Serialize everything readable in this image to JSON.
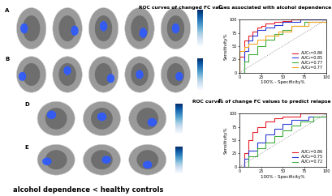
{
  "chart_data": [
    {
      "type": "line",
      "panel": "C",
      "title": "ROC curves of changed FC values associated with alcohol dependence",
      "x_label": "100% - Specificity%",
      "y_label": "Sensitivity%",
      "xlim": [
        0,
        100
      ],
      "ylim": [
        0,
        100
      ],
      "xticks": [
        0,
        25,
        50,
        75,
        100
      ],
      "yticks": [
        0,
        25,
        50,
        75,
        100
      ],
      "legend": "lower right",
      "series": [
        {
          "name": "AUC₁=0.86",
          "color": "#e8202a",
          "x": [
            0,
            0,
            5,
            5,
            10,
            15,
            20,
            25,
            30,
            40,
            50,
            60,
            75,
            100
          ],
          "values": [
            0,
            30,
            45,
            60,
            70,
            78,
            85,
            88,
            92,
            95,
            97,
            100,
            100,
            100
          ]
        },
        {
          "name": "AUC₂=0.85",
          "color": "#2a3ad8",
          "x": [
            0,
            5,
            10,
            15,
            20,
            30,
            40,
            50,
            70,
            100
          ],
          "values": [
            0,
            40,
            60,
            70,
            80,
            85,
            90,
            95,
            100,
            100
          ]
        },
        {
          "name": "AUC₃=0.77",
          "color": "#3fae3a",
          "x": [
            0,
            5,
            10,
            20,
            30,
            40,
            50,
            60,
            75,
            100
          ],
          "values": [
            0,
            20,
            35,
            50,
            62,
            72,
            80,
            88,
            95,
            100
          ]
        },
        {
          "name": "AUC₄=0.77",
          "color": "#f5a623",
          "x": [
            0,
            0,
            5,
            10,
            20,
            30,
            45,
            60,
            80,
            100
          ],
          "values": [
            0,
            40,
            48,
            55,
            62,
            70,
            78,
            88,
            95,
            100
          ]
        }
      ]
    },
    {
      "type": "line",
      "panel": "F",
      "title": "ROC curves of change FC values to predict relapse",
      "x_label": "100% - Specificity%",
      "y_label": "Sensitivity%",
      "xlim": [
        0,
        100
      ],
      "ylim": [
        0,
        100
      ],
      "xticks": [
        0,
        25,
        50,
        75,
        100
      ],
      "yticks": [
        0,
        25,
        50,
        75,
        100
      ],
      "legend": "lower right",
      "series": [
        {
          "name": "AUC₁=0.86",
          "color": "#e8202a",
          "x": [
            0,
            5,
            10,
            15,
            20,
            30,
            40,
            50,
            70,
            100
          ],
          "values": [
            0,
            25,
            50,
            65,
            75,
            85,
            92,
            95,
            100,
            100
          ]
        },
        {
          "name": "AUC₂=0.75",
          "color": "#2a3ad8",
          "x": [
            0,
            5,
            10,
            20,
            30,
            40,
            50,
            60,
            80,
            100
          ],
          "values": [
            0,
            15,
            30,
            45,
            60,
            72,
            80,
            88,
            95,
            100
          ]
        },
        {
          "name": "AUC₃=0.72",
          "color": "#3fae3a",
          "x": [
            0,
            10,
            20,
            30,
            40,
            50,
            60,
            70,
            85,
            100
          ],
          "values": [
            0,
            20,
            35,
            45,
            58,
            68,
            78,
            85,
            95,
            100
          ]
        }
      ]
    }
  ],
  "brain_panels": [
    "A",
    "B",
    "D",
    "E"
  ],
  "caption": "alcohol dependence < healthy controls"
}
